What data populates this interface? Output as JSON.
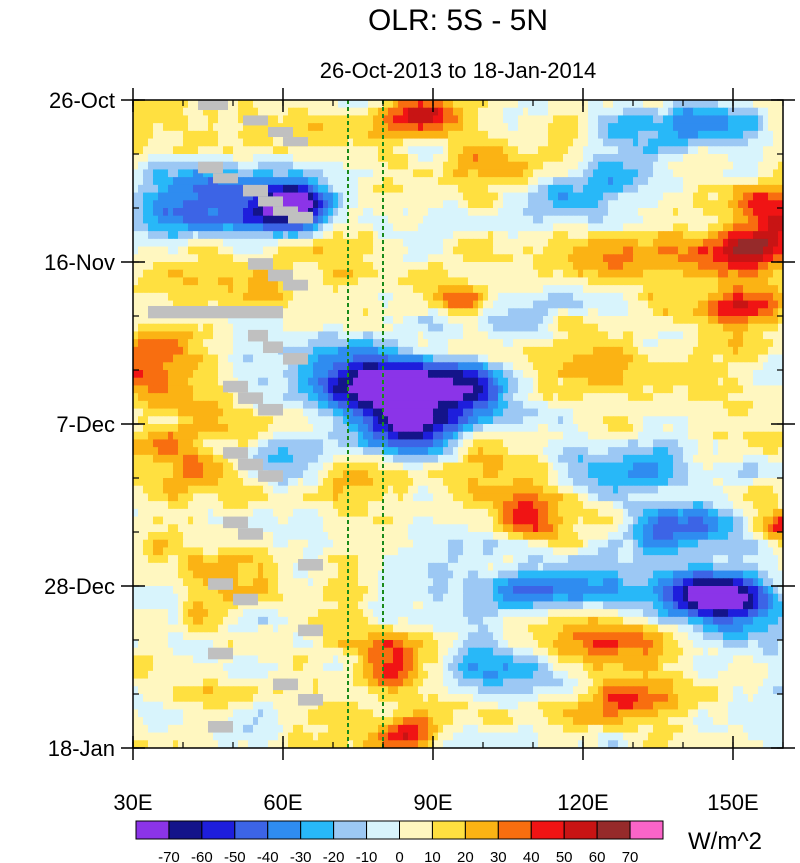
{
  "chart_data": {
    "type": "heatmap",
    "title": "OLR: 5S - 5N",
    "subtitle": "26-Oct-2013 to 18-Jan-2014",
    "x_axis": {
      "range": [
        30,
        160
      ],
      "ticks": [
        30,
        60,
        90,
        120,
        150
      ],
      "tick_labels": [
        "30E",
        "60E",
        "90E",
        "120E",
        "150E"
      ],
      "minor_step": 10
    },
    "y_axis": {
      "range_days": [
        0,
        84
      ],
      "ticks_days": [
        0,
        21,
        42,
        63,
        84
      ],
      "tick_labels": [
        "26-Oct",
        "16-Nov",
        "7-Dec",
        "28-Dec",
        "18-Jan"
      ],
      "minor_step_days": 7
    },
    "reference_lines_lon": [
      73,
      80
    ],
    "colorbar": {
      "levels": [
        -70,
        -60,
        -50,
        -40,
        -30,
        -20,
        -10,
        0,
        10,
        20,
        30,
        40,
        50,
        60,
        70
      ],
      "colors": [
        "#8b34e8",
        "#14148a",
        "#1e1edc",
        "#3c64e6",
        "#2f8cf0",
        "#28b8f8",
        "#9cc8f4",
        "#d8f4fc",
        "#fff7c0",
        "#ffe040",
        "#fbb314",
        "#f86e10",
        "#f01414",
        "#c81414",
        "#962a2a",
        "#fa64c8"
      ],
      "units": "W/m^2"
    },
    "missing_color": "#c0c0c0",
    "missing_blocks": [
      {
        "lon": [
          43,
          49
        ],
        "day": [
          0,
          1.3
        ]
      },
      {
        "lon": [
          52,
          57
        ],
        "day": [
          2,
          3.3
        ]
      },
      {
        "lon": [
          57,
          62
        ],
        "day": [
          3.5,
          4.8
        ]
      },
      {
        "lon": [
          60,
          65
        ],
        "day": [
          4.8,
          6
        ]
      },
      {
        "lon": [
          43,
          48
        ],
        "day": [
          8,
          9.5
        ]
      },
      {
        "lon": [
          46,
          51
        ],
        "day": [
          9.5,
          10.8
        ]
      },
      {
        "lon": [
          52,
          57
        ],
        "day": [
          11,
          12.5
        ]
      },
      {
        "lon": [
          55,
          60
        ],
        "day": [
          12.5,
          13.8
        ]
      },
      {
        "lon": [
          58,
          63
        ],
        "day": [
          13.8,
          15
        ]
      },
      {
        "lon": [
          61,
          66
        ],
        "day": [
          14.5,
          16
        ]
      },
      {
        "lon": [
          53,
          58
        ],
        "day": [
          20.5,
          22
        ]
      },
      {
        "lon": [
          57,
          62
        ],
        "day": [
          22,
          23.5
        ]
      },
      {
        "lon": [
          60,
          65
        ],
        "day": [
          23.3,
          24.7
        ]
      },
      {
        "lon": [
          33,
          60
        ],
        "day": [
          26.7,
          28.3
        ]
      },
      {
        "lon": [
          53,
          57
        ],
        "day": [
          29.8,
          31.3
        ]
      },
      {
        "lon": [
          56,
          60
        ],
        "day": [
          31.3,
          32.8
        ]
      },
      {
        "lon": [
          60,
          65
        ],
        "day": [
          32.8,
          34.3
        ]
      },
      {
        "lon": [
          48,
          53
        ],
        "day": [
          36.4,
          37.9
        ]
      },
      {
        "lon": [
          51,
          56
        ],
        "day": [
          37.9,
          39.4
        ]
      },
      {
        "lon": [
          55,
          60
        ],
        "day": [
          39.4,
          40.9
        ]
      },
      {
        "lon": [
          48,
          53
        ],
        "day": [
          45,
          46.5
        ]
      },
      {
        "lon": [
          51,
          56
        ],
        "day": [
          46.5,
          48
        ]
      },
      {
        "lon": [
          55,
          60
        ],
        "day": [
          48,
          49.5
        ]
      },
      {
        "lon": [
          48,
          53
        ],
        "day": [
          54,
          55.5
        ]
      },
      {
        "lon": [
          51,
          56
        ],
        "day": [
          55.5,
          57
        ]
      },
      {
        "lon": [
          63,
          68
        ],
        "day": [
          59.5,
          61
        ]
      },
      {
        "lon": [
          45,
          50
        ],
        "day": [
          62,
          63.5
        ]
      },
      {
        "lon": [
          50,
          55
        ],
        "day": [
          64,
          65.5
        ]
      },
      {
        "lon": [
          63,
          68
        ],
        "day": [
          68,
          69.5
        ]
      },
      {
        "lon": [
          45,
          50
        ],
        "day": [
          71,
          72.5
        ]
      },
      {
        "lon": [
          58,
          63
        ],
        "day": [
          75,
          76.5
        ]
      },
      {
        "lon": [
          63,
          68
        ],
        "day": [
          77,
          78.5
        ]
      },
      {
        "lon": [
          45,
          50
        ],
        "day": [
          80.5,
          82
        ]
      }
    ],
    "features": [
      {
        "lon": 62,
        "day": 14,
        "rlon": 9,
        "rday": 3,
        "value": -70
      },
      {
        "lon": 52,
        "day": 12,
        "rlon": 13,
        "rday": 4,
        "value": -40
      },
      {
        "lon": 80,
        "day": 38,
        "rlon": 11,
        "rday": 4,
        "value": -55
      },
      {
        "lon": 85,
        "day": 43,
        "rlon": 9,
        "rday": 4,
        "value": -50
      },
      {
        "lon": 90,
        "day": 37,
        "rlon": 14,
        "rday": 3,
        "value": -45
      },
      {
        "lon": 72,
        "day": 35,
        "rlon": 10,
        "rday": 3,
        "value": -40
      },
      {
        "lon": 100,
        "day": 40,
        "rlon": 18,
        "rday": 6,
        "value": -35
      },
      {
        "lon": 145,
        "day": 64,
        "rlon": 9,
        "rday": 3,
        "value": -65
      },
      {
        "lon": 150,
        "day": 66,
        "rlon": 12,
        "rday": 5,
        "value": -45
      },
      {
        "lon": 115,
        "day": 63,
        "rlon": 20,
        "rday": 4,
        "value": -45
      },
      {
        "lon": 127,
        "day": 48,
        "rlon": 15,
        "rday": 3,
        "value": -40
      },
      {
        "lon": 140,
        "day": 55,
        "rlon": 12,
        "rday": 3,
        "value": -45
      },
      {
        "lon": 40,
        "day": 14,
        "rlon": 10,
        "rday": 4,
        "value": -30
      },
      {
        "lon": 120,
        "day": 12,
        "rlon": 18,
        "rday": 4,
        "value": -30
      },
      {
        "lon": 140,
        "day": 3,
        "rlon": 14,
        "rday": 3,
        "value": -40
      },
      {
        "lon": 100,
        "day": 74,
        "rlon": 16,
        "rday": 3,
        "value": -30
      },
      {
        "lon": 60,
        "day": 47,
        "rlon": 10,
        "rday": 4,
        "value": -30
      },
      {
        "lon": 108,
        "day": 27,
        "rlon": 15,
        "rday": 3,
        "value": -20
      },
      {
        "lon": 88,
        "day": 1.5,
        "rlon": 7,
        "rday": 2.5,
        "value": 55
      },
      {
        "lon": 158,
        "day": 15,
        "rlon": 8,
        "rday": 4,
        "value": 50
      },
      {
        "lon": 150,
        "day": 20,
        "rlon": 12,
        "rday": 3,
        "value": 40
      },
      {
        "lon": 150,
        "day": 27,
        "rlon": 10,
        "rday": 2.5,
        "value": 45
      },
      {
        "lon": 82,
        "day": 74,
        "rlon": 6,
        "rday": 4,
        "value": 45
      },
      {
        "lon": 85,
        "day": 82,
        "rlon": 6,
        "rday": 2,
        "value": 45
      },
      {
        "lon": 160,
        "day": 55,
        "rlon": 5,
        "rday": 2,
        "value": 50
      },
      {
        "lon": 95,
        "day": 26,
        "rlon": 7,
        "rday": 2,
        "value": 40
      },
      {
        "lon": 112,
        "day": 54,
        "rlon": 9,
        "rday": 4,
        "value": 35
      },
      {
        "lon": 105,
        "day": 44,
        "rlon": 14,
        "rday": 5,
        "value": 30
      },
      {
        "lon": 35,
        "day": 35,
        "rlon": 9,
        "rday": 5,
        "value": 30
      },
      {
        "lon": 40,
        "day": 48,
        "rlon": 11,
        "rday": 6,
        "value": 25
      },
      {
        "lon": 120,
        "day": 35,
        "rlon": 13,
        "rday": 4,
        "value": 30
      },
      {
        "lon": 125,
        "day": 70,
        "rlon": 13,
        "rday": 4,
        "value": 35
      },
      {
        "lon": 130,
        "day": 78,
        "rlon": 14,
        "rday": 3,
        "value": 25
      },
      {
        "lon": 100,
        "day": 9,
        "rlon": 10,
        "rday": 3,
        "value": 25
      },
      {
        "lon": 75,
        "day": 50,
        "rlon": 10,
        "rday": 4,
        "value": 25
      },
      {
        "lon": 58,
        "day": 24,
        "rlon": 7,
        "rday": 3,
        "value": 20
      },
      {
        "lon": 44,
        "day": 62,
        "rlon": 8,
        "rday": 5,
        "value": 15
      },
      {
        "lon": 125,
        "day": 22,
        "rlon": 15,
        "rday": 3,
        "value": 20
      }
    ],
    "annotations": [
      "dotted vertical lines at 73E and 80E"
    ]
  }
}
